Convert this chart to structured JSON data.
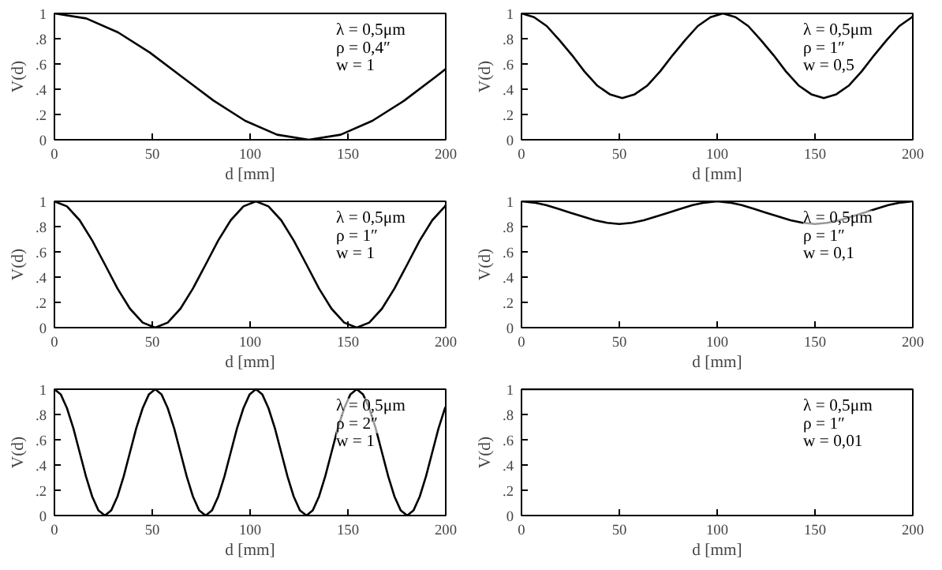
{
  "chart_data": [
    {
      "type": "line",
      "xlabel": "d [mm]",
      "ylabel": "V(d)",
      "annotations": [
        "λ = 0,5μm",
        "ρ = 0,4″",
        "w = 1"
      ],
      "xlim": [
        0,
        200
      ],
      "ylim": [
        0,
        1
      ],
      "xticks": [
        0,
        50,
        100,
        150,
        200
      ],
      "yticks": [
        0,
        {
          "value": 0.2,
          "label": ".2"
        },
        {
          "value": 0.4,
          "label": ".4"
        },
        {
          "value": 0.6,
          "label": ".6"
        },
        {
          "value": 0.8,
          "label": ".8"
        },
        1
      ],
      "grid": false,
      "series": [
        {
          "color": "#000000",
          "x": [
            0,
            16.3,
            32.5,
            48.8,
            65,
            81.3,
            97.5,
            113.8,
            130,
            146.3,
            162.5,
            178.8,
            195,
            200
          ],
          "values": [
            1,
            0.96,
            0.85,
            0.69,
            0.5,
            0.31,
            0.15,
            0.04,
            0,
            0.04,
            0.15,
            0.31,
            0.5,
            0.56
          ]
        }
      ]
    },
    {
      "type": "line",
      "xlabel": "d [mm]",
      "ylabel": "V(d)",
      "annotations": [
        "λ = 0,5μm",
        "ρ = 1″",
        "w = 0,5"
      ],
      "xlim": [
        0,
        200
      ],
      "ylim": [
        0,
        1
      ],
      "xticks": [
        0,
        50,
        100,
        150,
        200
      ],
      "yticks": [
        0,
        {
          "value": 0.2,
          "label": ".2"
        },
        {
          "value": 0.4,
          "label": ".4"
        },
        {
          "value": 0.6,
          "label": ".6"
        },
        {
          "value": 0.8,
          "label": ".8"
        },
        1
      ],
      "grid": false,
      "series": [
        {
          "color": "#000000",
          "x": [
            0,
            6.4,
            12.9,
            19.3,
            25.8,
            32.2,
            38.6,
            45.1,
            51.5,
            57.9,
            64.4,
            70.8,
            77.3,
            83.7,
            90.1,
            96.6,
            103,
            109.4,
            115.9,
            122.3,
            128.8,
            135.2,
            141.6,
            148.1,
            154.5,
            160.9,
            167.4,
            173.8,
            180.3,
            186.7,
            193.1,
            199.6,
            200
          ],
          "values": [
            1,
            0.97,
            0.9,
            0.79,
            0.67,
            0.54,
            0.43,
            0.36,
            0.33,
            0.36,
            0.43,
            0.54,
            0.67,
            0.79,
            0.9,
            0.97,
            1,
            0.97,
            0.9,
            0.79,
            0.67,
            0.54,
            0.43,
            0.36,
            0.33,
            0.36,
            0.43,
            0.54,
            0.67,
            0.79,
            0.9,
            0.97,
            0.98
          ]
        }
      ]
    },
    {
      "type": "line",
      "xlabel": "d [mm]",
      "ylabel": "V(d)",
      "annotations": [
        "λ = 0,5μm",
        "ρ = 1″",
        "w = 1"
      ],
      "xlim": [
        0,
        200
      ],
      "ylim": [
        0,
        1
      ],
      "xticks": [
        0,
        50,
        100,
        150,
        200
      ],
      "yticks": [
        0,
        {
          "value": 0.2,
          "label": ".2"
        },
        {
          "value": 0.4,
          "label": ".4"
        },
        {
          "value": 0.6,
          "label": ".6"
        },
        {
          "value": 0.8,
          "label": ".8"
        },
        1
      ],
      "grid": false,
      "series": [
        {
          "color": "#000000",
          "x": [
            0,
            6.4,
            12.9,
            19.3,
            25.8,
            32.2,
            38.6,
            45.1,
            51.5,
            57.9,
            64.4,
            70.8,
            77.3,
            83.7,
            90.1,
            96.6,
            103,
            109.4,
            115.9,
            122.3,
            128.8,
            135.2,
            141.6,
            148.1,
            154.5,
            160.9,
            167.4,
            173.8,
            180.3,
            186.7,
            193.1,
            199.6,
            200
          ],
          "values": [
            1,
            0.96,
            0.85,
            0.69,
            0.5,
            0.31,
            0.15,
            0.04,
            0,
            0.04,
            0.15,
            0.31,
            0.5,
            0.69,
            0.85,
            0.96,
            1,
            0.96,
            0.85,
            0.69,
            0.5,
            0.31,
            0.15,
            0.04,
            0,
            0.04,
            0.15,
            0.31,
            0.5,
            0.69,
            0.85,
            0.96,
            0.97
          ]
        }
      ]
    },
    {
      "type": "line",
      "xlabel": "d [mm]",
      "ylabel": "V(d)",
      "annotations": [
        "λ = 0,5μm",
        "ρ = 1″",
        "w = 0,1"
      ],
      "xlim": [
        0,
        200
      ],
      "ylim": [
        0,
        1
      ],
      "xticks": [
        0,
        50,
        100,
        150,
        200
      ],
      "yticks": [
        0,
        {
          "value": 0.2,
          "label": ".2"
        },
        {
          "value": 0.4,
          "label": ".4"
        },
        {
          "value": 0.6,
          "label": ".6"
        },
        {
          "value": 0.8,
          "label": ".8"
        },
        1
      ],
      "grid": false,
      "series": [
        {
          "color": "#000000",
          "x": [
            0,
            6.3,
            12.5,
            18.8,
            25,
            31.3,
            37.5,
            43.8,
            50,
            56.3,
            62.5,
            68.8,
            75,
            81.3,
            87.5,
            93.8,
            100,
            106.3,
            112.5,
            118.8,
            125,
            131.3,
            137.5,
            143.8,
            150,
            156.3,
            162.5,
            168.8,
            175,
            181.3,
            187.5,
            193.8,
            200
          ],
          "values": [
            1,
            0.99,
            0.97,
            0.94,
            0.91,
            0.88,
            0.85,
            0.83,
            0.82,
            0.83,
            0.85,
            0.88,
            0.91,
            0.94,
            0.97,
            0.99,
            1,
            0.99,
            0.97,
            0.94,
            0.91,
            0.88,
            0.85,
            0.83,
            0.82,
            0.83,
            0.85,
            0.88,
            0.91,
            0.94,
            0.97,
            0.99,
            1
          ]
        }
      ]
    },
    {
      "type": "line",
      "xlabel": "d [mm]",
      "ylabel": "V(d)",
      "annotations": [
        "λ = 0,5μm",
        "ρ = 2″",
        "w = 1"
      ],
      "xlim": [
        0,
        200
      ],
      "ylim": [
        0,
        1
      ],
      "xticks": [
        0,
        50,
        100,
        150,
        200
      ],
      "yticks": [
        0,
        {
          "value": 0.2,
          "label": ".2"
        },
        {
          "value": 0.4,
          "label": ".4"
        },
        {
          "value": 0.6,
          "label": ".6"
        },
        {
          "value": 0.8,
          "label": ".8"
        },
        1
      ],
      "grid": false,
      "series": [
        {
          "color": "#000000",
          "x": [
            0,
            3.2,
            6.4,
            9.7,
            12.9,
            16.1,
            19.3,
            22.5,
            25.8,
            29,
            32.2,
            35.4,
            38.6,
            41.8,
            45.1,
            48.3,
            51.5,
            54.7,
            57.9,
            61.2,
            64.4,
            67.6,
            70.8,
            74,
            77.3,
            80.5,
            83.7,
            86.9,
            90.1,
            93.3,
            96.6,
            99.8,
            103,
            106.2,
            109.4,
            112.7,
            115.9,
            119.1,
            122.3,
            125.5,
            128.8,
            132,
            135.2,
            138.4,
            141.6,
            144.8,
            148.1,
            151.3,
            154.5,
            157.7,
            160.9,
            164.2,
            167.4,
            170.6,
            173.8,
            177,
            180.3,
            183.5,
            186.7,
            189.9,
            193.1,
            196.3,
            199.6,
            200
          ],
          "values": [
            1,
            0.96,
            0.85,
            0.69,
            0.5,
            0.31,
            0.15,
            0.04,
            0,
            0.04,
            0.15,
            0.31,
            0.5,
            0.69,
            0.85,
            0.96,
            1,
            0.96,
            0.85,
            0.69,
            0.5,
            0.31,
            0.15,
            0.04,
            0,
            0.04,
            0.15,
            0.31,
            0.5,
            0.69,
            0.85,
            0.96,
            1,
            0.96,
            0.85,
            0.69,
            0.5,
            0.31,
            0.15,
            0.04,
            0,
            0.04,
            0.15,
            0.31,
            0.5,
            0.69,
            0.85,
            0.96,
            1,
            0.96,
            0.85,
            0.69,
            0.5,
            0.31,
            0.15,
            0.04,
            0,
            0.04,
            0.15,
            0.31,
            0.5,
            0.69,
            0.85,
            0.86
          ]
        }
      ]
    },
    {
      "type": "line",
      "xlabel": "d [mm]",
      "ylabel": "V(d)",
      "annotations": [
        "λ = 0,5μm",
        "ρ = 1″",
        "w = 0,01"
      ],
      "xlim": [
        0,
        200
      ],
      "ylim": [
        0,
        1
      ],
      "xticks": [
        0,
        50,
        100,
        150,
        200
      ],
      "yticks": [
        0,
        {
          "value": 0.2,
          "label": ".2"
        },
        {
          "value": 0.4,
          "label": ".4"
        },
        {
          "value": 0.6,
          "label": ".6"
        },
        {
          "value": 0.8,
          "label": ".8"
        },
        1
      ],
      "grid": false,
      "series": [
        {
          "color": "#000000",
          "x": [
            0,
            50,
            100,
            150,
            200
          ],
          "values": [
            1,
            1,
            1,
            1,
            1
          ]
        }
      ]
    }
  ]
}
